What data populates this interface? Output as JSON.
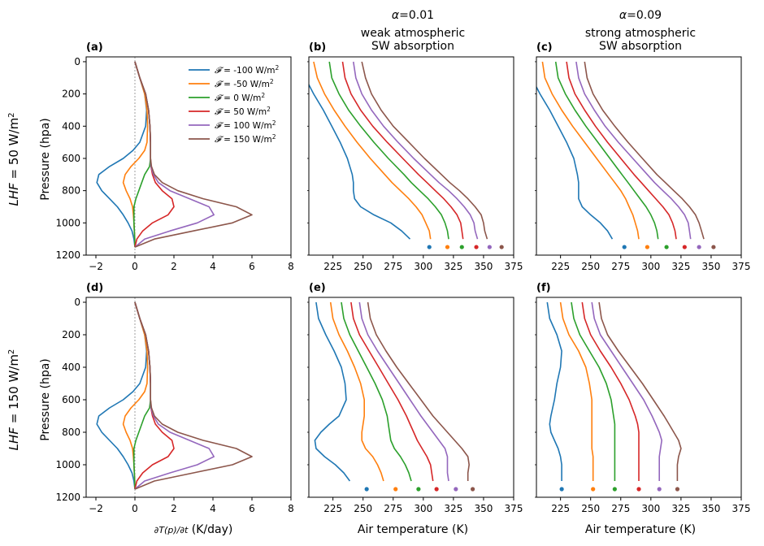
{
  "figure": {
    "row_labels": [
      {
        "prefix": "LHF",
        "text": " = 50 W/m",
        "sup": "2"
      },
      {
        "prefix": "LHF",
        "text": " = 150 W/m",
        "sup": "2"
      }
    ],
    "col_headers": [
      {
        "alpha_value": "=0.01",
        "line2": "weak atmospheric",
        "line3": "SW absorption"
      },
      {
        "alpha_value": "=0.09",
        "line2": "strong atmospheric",
        "line3": "SW absorption"
      }
    ],
    "ylabel": "Pressure (hpa)",
    "xlabel_heating_unit": " (K/day)",
    "xlabel_temp": "Air temperature (K)"
  },
  "colors": [
    "#1f77b4",
    "#ff7f0e",
    "#2ca02c",
    "#d62728",
    "#9467bd",
    "#8c564b"
  ],
  "legend": {
    "placement": "top-right of panel (a)",
    "entries": [
      {
        "symbol": "𝓕",
        "text": " = -100 W/m",
        "sup": "2"
      },
      {
        "symbol": "𝓕",
        "text": " = -50 W/m",
        "sup": "2"
      },
      {
        "symbol": "𝓕",
        "text": " = 0 W/m",
        "sup": "2"
      },
      {
        "symbol": "𝓕",
        "text": " = 50 W/m",
        "sup": "2"
      },
      {
        "symbol": "𝓕",
        "text": " = 100 W/m",
        "sup": "2"
      },
      {
        "symbol": "𝓕",
        "text": " = 150 W/m",
        "sup": "2"
      }
    ]
  },
  "chart_data": [
    {
      "panel": "(a)",
      "type": "line",
      "xlim": [
        -2.5,
        8
      ],
      "ylim": [
        1200,
        -30
      ],
      "xticks": [
        -2,
        0,
        2,
        4,
        6,
        8
      ],
      "yticks": [
        0,
        200,
        400,
        600,
        800,
        1000,
        1200
      ],
      "xlabel": "",
      "ylabel": "Pressure (hpa)",
      "pressure": [
        0,
        100,
        200,
        300,
        400,
        500,
        550,
        600,
        650,
        700,
        750,
        800,
        850,
        900,
        950,
        1000,
        1050,
        1100,
        1150
      ],
      "series": [
        {
          "values": [
            0,
            0.25,
            0.5,
            0.6,
            0.55,
            0.25,
            -0.1,
            -0.6,
            -1.3,
            -1.85,
            -1.95,
            -1.7,
            -1.3,
            -0.9,
            -0.6,
            -0.35,
            -0.15,
            -0.05,
            0
          ]
        },
        {
          "values": [
            0,
            0.25,
            0.5,
            0.62,
            0.65,
            0.62,
            0.5,
            0.2,
            -0.2,
            -0.5,
            -0.6,
            -0.45,
            -0.25,
            -0.12,
            -0.08,
            -0.05,
            -0.03,
            -0.01,
            0
          ]
        },
        {
          "values": [
            0,
            0.25,
            0.55,
            0.7,
            0.77,
            0.8,
            0.8,
            0.8,
            0.75,
            0.5,
            0.35,
            0.2,
            0.05,
            -0.05,
            -0.05,
            -0.05,
            -0.03,
            -0.01,
            0
          ]
        },
        {
          "values": [
            0,
            0.25,
            0.55,
            0.7,
            0.77,
            0.8,
            0.8,
            0.8,
            0.82,
            0.9,
            1.05,
            1.4,
            1.9,
            2.0,
            1.7,
            0.9,
            0.4,
            0.1,
            0
          ]
        },
        {
          "values": [
            0,
            0.25,
            0.55,
            0.7,
            0.77,
            0.8,
            0.8,
            0.8,
            0.82,
            0.95,
            1.2,
            1.8,
            2.8,
            3.8,
            4.05,
            3.2,
            1.8,
            0.5,
            0
          ]
        },
        {
          "values": [
            0,
            0.25,
            0.55,
            0.7,
            0.77,
            0.8,
            0.8,
            0.8,
            0.85,
            1.0,
            1.4,
            2.2,
            3.5,
            5.2,
            6.0,
            5.0,
            3.0,
            1.0,
            0
          ]
        }
      ]
    },
    {
      "panel": "(b)",
      "type": "line",
      "xlim": [
        205,
        375
      ],
      "ylim": [
        1200,
        -30
      ],
      "xticks": [
        225,
        250,
        275,
        300,
        325,
        350,
        375
      ],
      "pressure": [
        0,
        100,
        200,
        300,
        400,
        500,
        600,
        700,
        750,
        800,
        850,
        900,
        950,
        1000,
        1050,
        1100
      ],
      "series": [
        {
          "values": [
            195,
            202,
            209,
            217,
            224,
            231,
            237,
            241,
            242,
            242,
            243,
            248,
            259,
            273,
            282,
            289
          ]
        },
        {
          "values": [
            209,
            212,
            218,
            226,
            235,
            245,
            256,
            268,
            274,
            281,
            288,
            294,
            299,
            302,
            305,
            306
          ]
        },
        {
          "values": [
            222,
            224,
            230,
            238,
            248,
            259,
            271,
            284,
            290,
            297,
            304,
            310,
            315,
            318,
            320,
            321
          ]
        },
        {
          "values": [
            233,
            235,
            240,
            248,
            258,
            270,
            283,
            296,
            303,
            310,
            317,
            323,
            328,
            331,
            332,
            333
          ]
        },
        {
          "values": [
            242,
            244,
            249,
            257,
            267,
            279,
            292,
            306,
            313,
            321,
            328,
            334,
            339,
            342,
            343,
            345
          ]
        },
        {
          "values": [
            249,
            252,
            257,
            265,
            275,
            288,
            301,
            315,
            322,
            330,
            337,
            343,
            348,
            350,
            351,
            353
          ]
        }
      ],
      "surface_points": [
        305,
        320,
        332,
        344,
        355,
        365
      ]
    },
    {
      "panel": "(c)",
      "type": "line",
      "xlim": [
        205,
        375
      ],
      "ylim": [
        1200,
        -30
      ],
      "xticks": [
        225,
        250,
        275,
        300,
        325,
        350,
        375
      ],
      "pressure": [
        0,
        100,
        200,
        300,
        400,
        500,
        600,
        700,
        750,
        800,
        850,
        900,
        950,
        1000,
        1050,
        1100
      ],
      "series": [
        {
          "values": [
            195,
            201,
            208,
            216,
            223,
            230,
            236,
            239,
            240,
            240,
            240,
            243,
            250,
            258,
            264,
            268
          ]
        },
        {
          "values": [
            210,
            212,
            218,
            226,
            235,
            245,
            255,
            265,
            270,
            275,
            279,
            282,
            285,
            287,
            289,
            290
          ]
        },
        {
          "values": [
            221,
            223,
            229,
            237,
            246,
            256,
            266,
            276,
            281,
            286,
            291,
            296,
            300,
            303,
            305,
            306
          ]
        },
        {
          "values": [
            230,
            232,
            237,
            245,
            254,
            264,
            275,
            286,
            292,
            298,
            304,
            310,
            315,
            318,
            320,
            321
          ]
        },
        {
          "values": [
            238,
            240,
            245,
            253,
            262,
            273,
            285,
            297,
            303,
            310,
            317,
            323,
            328,
            331,
            332,
            333
          ]
        },
        {
          "values": [
            245,
            247,
            252,
            260,
            270,
            281,
            293,
            305,
            312,
            319,
            326,
            332,
            337,
            340,
            342,
            344
          ]
        }
      ],
      "surface_points": [
        278,
        297,
        313,
        328,
        340,
        352
      ]
    },
    {
      "panel": "(d)",
      "type": "line",
      "xlim": [
        -2.5,
        8
      ],
      "ylim": [
        1200,
        -30
      ],
      "xticks": [
        -2,
        0,
        2,
        4,
        6,
        8
      ],
      "yticks": [
        0,
        200,
        400,
        600,
        800,
        1000,
        1200
      ],
      "xlabel": "∂T(p)/∂t (K/day)",
      "ylabel": "Pressure (hpa)",
      "pressure": [
        0,
        100,
        200,
        300,
        400,
        500,
        550,
        600,
        650,
        700,
        750,
        800,
        850,
        900,
        950,
        1000,
        1050,
        1100,
        1150
      ],
      "series": [
        {
          "values": [
            0,
            0.25,
            0.5,
            0.6,
            0.55,
            0.25,
            -0.1,
            -0.6,
            -1.3,
            -1.85,
            -1.95,
            -1.7,
            -1.3,
            -0.9,
            -0.6,
            -0.35,
            -0.15,
            -0.05,
            0
          ]
        },
        {
          "values": [
            0,
            0.25,
            0.5,
            0.62,
            0.65,
            0.62,
            0.5,
            0.2,
            -0.2,
            -0.5,
            -0.6,
            -0.45,
            -0.25,
            -0.12,
            -0.08,
            -0.05,
            -0.03,
            -0.01,
            0
          ]
        },
        {
          "values": [
            0,
            0.25,
            0.55,
            0.7,
            0.77,
            0.8,
            0.8,
            0.8,
            0.75,
            0.5,
            0.35,
            0.2,
            0.05,
            -0.05,
            -0.05,
            -0.05,
            -0.03,
            -0.01,
            0
          ]
        },
        {
          "values": [
            0,
            0.25,
            0.55,
            0.7,
            0.77,
            0.8,
            0.8,
            0.8,
            0.82,
            0.9,
            1.05,
            1.4,
            1.9,
            2.0,
            1.7,
            0.9,
            0.4,
            0.1,
            0
          ]
        },
        {
          "values": [
            0,
            0.25,
            0.55,
            0.7,
            0.77,
            0.8,
            0.8,
            0.8,
            0.82,
            0.95,
            1.2,
            1.8,
            2.8,
            3.8,
            4.05,
            3.2,
            1.8,
            0.5,
            0
          ]
        },
        {
          "values": [
            0,
            0.25,
            0.55,
            0.7,
            0.77,
            0.8,
            0.8,
            0.8,
            0.85,
            1.0,
            1.4,
            2.2,
            3.5,
            5.2,
            6.0,
            5.0,
            3.0,
            1.0,
            0
          ]
        }
      ]
    },
    {
      "panel": "(e)",
      "type": "line",
      "xlim": [
        205,
        375
      ],
      "ylim": [
        1200,
        -30
      ],
      "xticks": [
        225,
        250,
        275,
        300,
        325,
        350,
        375
      ],
      "xlabel": "Air temperature (K)",
      "pressure": [
        0,
        100,
        200,
        300,
        400,
        500,
        600,
        700,
        750,
        800,
        850,
        900,
        950,
        1000,
        1050,
        1100
      ],
      "series": [
        {
          "values": [
            211,
            213,
            219,
            226,
            232,
            235,
            236,
            230,
            222,
            215,
            210,
            211,
            218,
            227,
            234,
            239
          ]
        },
        {
          "values": [
            223,
            225,
            230,
            237,
            243,
            248,
            251,
            251,
            250,
            249,
            249,
            252,
            258,
            262,
            265,
            267
          ]
        },
        {
          "values": [
            232,
            234,
            239,
            246,
            253,
            260,
            266,
            270,
            271,
            272,
            273,
            276,
            281,
            285,
            288,
            290
          ]
        },
        {
          "values": [
            240,
            242,
            247,
            255,
            263,
            271,
            279,
            286,
            289,
            292,
            295,
            299,
            303,
            306,
            307,
            308
          ]
        },
        {
          "values": [
            247,
            249,
            254,
            262,
            271,
            280,
            289,
            298,
            303,
            308,
            313,
            318,
            320,
            320,
            320,
            321
          ]
        },
        {
          "values": [
            254,
            256,
            261,
            269,
            278,
            288,
            298,
            308,
            314,
            320,
            326,
            332,
            337,
            338,
            337,
            337
          ]
        }
      ],
      "surface_points": [
        253,
        277,
        296,
        311,
        327,
        341
      ]
    },
    {
      "panel": "(f)",
      "type": "line",
      "xlim": [
        205,
        375
      ],
      "ylim": [
        1200,
        -30
      ],
      "xticks": [
        225,
        250,
        275,
        300,
        325,
        350,
        375
      ],
      "xlabel": "Air temperature (K)",
      "pressure": [
        0,
        100,
        200,
        300,
        400,
        500,
        600,
        700,
        750,
        800,
        850,
        900,
        950,
        1000,
        1050,
        1100
      ],
      "series": [
        {
          "values": [
            214,
            216,
            222,
            226,
            225,
            222,
            220,
            217,
            216,
            217,
            220,
            223,
            225,
            226,
            226,
            226
          ]
        },
        {
          "values": [
            225,
            227,
            232,
            240,
            246,
            249,
            251,
            251,
            251,
            251,
            251,
            251,
            252,
            252,
            252,
            252
          ]
        },
        {
          "values": [
            234,
            236,
            241,
            249,
            257,
            263,
            267,
            269,
            270,
            270,
            270,
            270,
            270,
            270,
            270,
            270
          ]
        },
        {
          "values": [
            243,
            245,
            250,
            258,
            267,
            275,
            282,
            287,
            289,
            290,
            290,
            290,
            290,
            290,
            290,
            290
          ]
        },
        {
          "values": [
            251,
            253,
            258,
            267,
            276,
            285,
            294,
            301,
            304,
            307,
            309,
            308,
            307,
            307,
            307,
            307
          ]
        },
        {
          "values": [
            257,
            259,
            264,
            273,
            283,
            293,
            302,
            311,
            315,
            319,
            323,
            325,
            323,
            322,
            322,
            322
          ]
        }
      ],
      "surface_points": [
        226,
        252,
        270,
        290,
        307,
        322
      ]
    }
  ]
}
